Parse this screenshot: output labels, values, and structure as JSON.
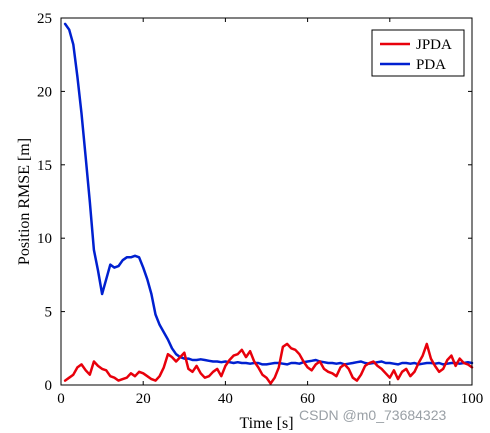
{
  "watermark": "CSDN @m0_73684323",
  "chart_data": {
    "type": "line",
    "title": "",
    "xlabel": "Time [s]",
    "ylabel": "Position RMSE [m]",
    "xlim": [
      0,
      100
    ],
    "ylim": [
      0,
      25
    ],
    "xticks": [
      0,
      20,
      40,
      60,
      80,
      100
    ],
    "yticks": [
      0,
      5,
      10,
      15,
      20,
      25
    ],
    "grid": false,
    "legend_position": "top-right",
    "x": [
      1,
      2,
      3,
      4,
      5,
      6,
      7,
      8,
      9,
      10,
      11,
      12,
      13,
      14,
      15,
      16,
      17,
      18,
      19,
      20,
      21,
      22,
      23,
      24,
      25,
      26,
      27,
      28,
      29,
      30,
      31,
      32,
      33,
      34,
      35,
      36,
      37,
      38,
      39,
      40,
      41,
      42,
      43,
      44,
      45,
      46,
      47,
      48,
      49,
      50,
      51,
      52,
      53,
      54,
      55,
      56,
      57,
      58,
      59,
      60,
      61,
      62,
      63,
      64,
      65,
      66,
      67,
      68,
      69,
      70,
      71,
      72,
      73,
      74,
      75,
      76,
      77,
      78,
      79,
      80,
      81,
      82,
      83,
      84,
      85,
      86,
      87,
      88,
      89,
      90,
      91,
      92,
      93,
      94,
      95,
      96,
      97,
      98,
      99,
      100
    ],
    "series": [
      {
        "name": "JPDA",
        "color": "#e8000b",
        "values": [
          0.3,
          0.5,
          0.7,
          1.2,
          1.4,
          1.0,
          0.7,
          1.6,
          1.3,
          1.1,
          1.0,
          0.6,
          0.5,
          0.3,
          0.4,
          0.5,
          0.8,
          0.6,
          0.9,
          0.8,
          0.6,
          0.4,
          0.3,
          0.6,
          1.2,
          2.1,
          1.9,
          1.6,
          1.9,
          2.2,
          1.1,
          0.9,
          1.3,
          0.8,
          0.5,
          0.6,
          0.9,
          1.1,
          0.6,
          1.3,
          1.7,
          2.0,
          2.1,
          2.4,
          1.9,
          2.3,
          1.6,
          1.2,
          0.7,
          0.5,
          0.1,
          0.5,
          1.2,
          2.6,
          2.8,
          2.5,
          2.4,
          2.1,
          1.6,
          1.2,
          1.0,
          1.4,
          1.6,
          1.1,
          0.9,
          0.8,
          0.6,
          1.2,
          1.4,
          1.1,
          0.5,
          0.3,
          0.7,
          1.3,
          1.5,
          1.6,
          1.3,
          1.1,
          0.8,
          0.5,
          1.0,
          0.4,
          0.9,
          1.1,
          0.6,
          0.9,
          1.5,
          2.0,
          2.8,
          1.8,
          1.3,
          0.9,
          1.1,
          1.7,
          2.0,
          1.3,
          1.8,
          1.5,
          1.4,
          1.2
        ]
      },
      {
        "name": "PDA",
        "color": "#0020d0",
        "values": [
          24.6,
          24.2,
          23.2,
          21.0,
          18.5,
          15.5,
          12.5,
          9.2,
          7.8,
          6.2,
          7.2,
          8.2,
          8.0,
          8.1,
          8.5,
          8.7,
          8.7,
          8.8,
          8.7,
          8.0,
          7.2,
          6.2,
          4.8,
          4.1,
          3.6,
          3.1,
          2.5,
          2.1,
          1.9,
          1.8,
          1.8,
          1.7,
          1.7,
          1.75,
          1.7,
          1.65,
          1.6,
          1.6,
          1.55,
          1.6,
          1.55,
          1.5,
          1.55,
          1.5,
          1.5,
          1.45,
          1.5,
          1.5,
          1.4,
          1.4,
          1.45,
          1.5,
          1.5,
          1.45,
          1.4,
          1.5,
          1.5,
          1.45,
          1.55,
          1.6,
          1.65,
          1.7,
          1.6,
          1.55,
          1.5,
          1.5,
          1.45,
          1.5,
          1.4,
          1.45,
          1.5,
          1.55,
          1.6,
          1.5,
          1.45,
          1.5,
          1.55,
          1.6,
          1.5,
          1.5,
          1.45,
          1.4,
          1.5,
          1.5,
          1.45,
          1.5,
          1.4,
          1.45,
          1.5,
          1.5,
          1.45,
          1.5,
          1.4,
          1.45,
          1.5,
          1.5,
          1.45,
          1.5,
          1.55,
          1.5
        ]
      }
    ]
  }
}
